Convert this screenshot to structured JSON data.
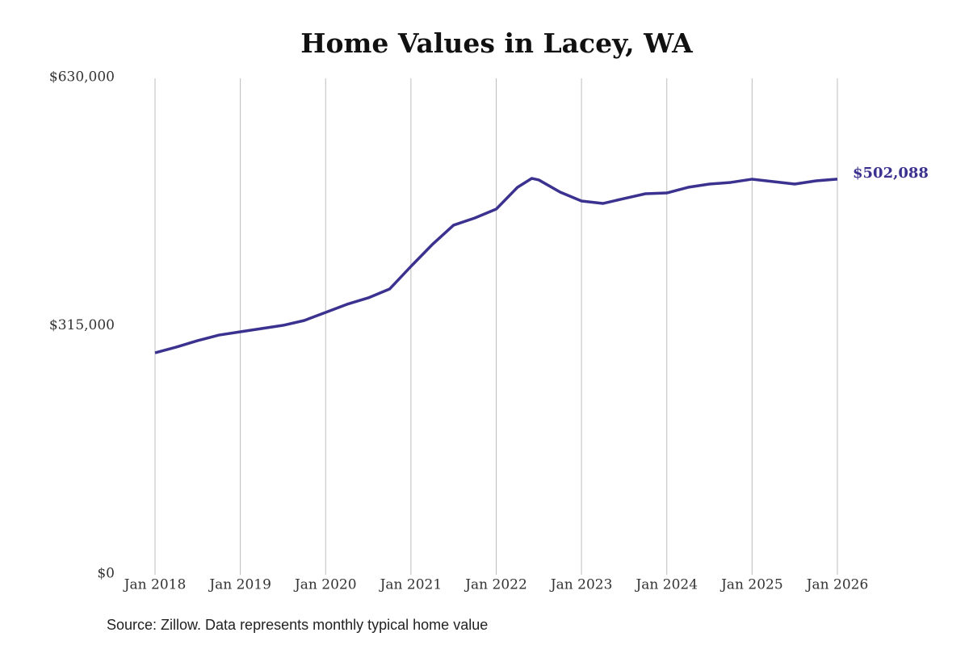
{
  "chart_data": {
    "type": "line",
    "title": "Home Values in Lacey, WA",
    "source": "Source: Zillow. Data represents monthly typical home value",
    "x": [
      "2018-01",
      "2018-04",
      "2018-07",
      "2018-10",
      "2019-01",
      "2019-04",
      "2019-07",
      "2019-10",
      "2020-01",
      "2020-04",
      "2020-07",
      "2020-10",
      "2021-01",
      "2021-04",
      "2021-07",
      "2021-10",
      "2022-01",
      "2022-04",
      "2022-06",
      "2022-07",
      "2022-10",
      "2023-01",
      "2023-04",
      "2023-07",
      "2023-10",
      "2024-01",
      "2024-04",
      "2024-07",
      "2024-10",
      "2025-01",
      "2025-04",
      "2025-07",
      "2025-10",
      "2026-01"
    ],
    "series": [
      {
        "name": "Home value",
        "color": "#3b318f",
        "values": [
          281700,
          288900,
          297100,
          304200,
          308300,
          312400,
          316500,
          322700,
          332900,
          343200,
          351400,
          362600,
          391300,
          419000,
          443600,
          452800,
          464000,
          491700,
          503000,
          501000,
          485600,
          474300,
          471200,
          477400,
          483500,
          484500,
          491700,
          495800,
          497900,
          502000,
          498900,
          495800,
          499900,
          502088
        ],
        "value_labels": [
          null,
          null,
          null,
          null,
          null,
          null,
          null,
          null,
          null,
          null,
          null,
          null,
          null,
          null,
          null,
          null,
          null,
          null,
          null,
          null,
          null,
          null,
          null,
          null,
          null,
          null,
          null,
          null,
          null,
          null,
          null,
          null,
          null,
          "$502,088"
        ]
      }
    ],
    "xlim": [
      "2018-01",
      "2026-01"
    ],
    "xticks": [
      {
        "value": "2018-01",
        "label": "Jan 2018"
      },
      {
        "value": "2019-01",
        "label": "Jan 2019"
      },
      {
        "value": "2020-01",
        "label": "Jan 2020"
      },
      {
        "value": "2021-01",
        "label": "Jan 2021"
      },
      {
        "value": "2022-01",
        "label": "Jan 2022"
      },
      {
        "value": "2023-01",
        "label": "Jan 2023"
      },
      {
        "value": "2024-01",
        "label": "Jan 2024"
      },
      {
        "value": "2025-01",
        "label": "Jan 2025"
      },
      {
        "value": "2026-01",
        "label": "Jan 2026"
      }
    ],
    "ylim": [
      0,
      630000
    ],
    "yticks": [
      {
        "value": 0,
        "label": "$0"
      },
      {
        "value": 315000,
        "label": "$315,000"
      },
      {
        "value": 630000,
        "label": "$630,000"
      }
    ],
    "grid": true
  }
}
